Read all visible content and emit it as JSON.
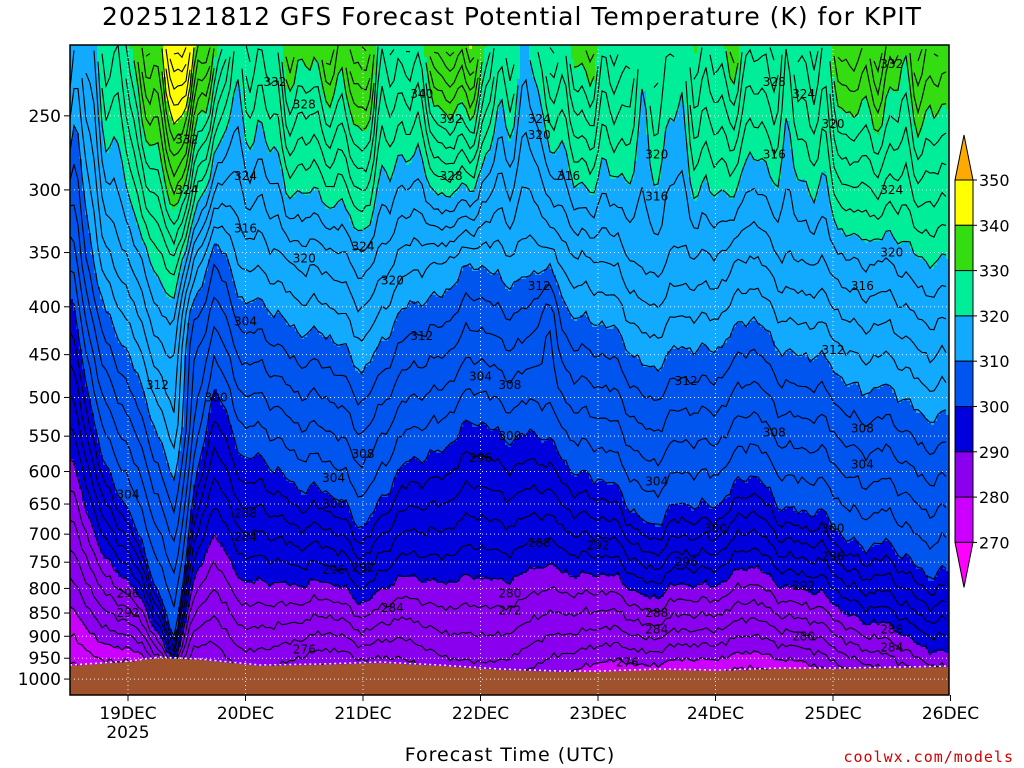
{
  "title": "2025121812 GFS Forecast Potential Temperature (K) for KPIT",
  "credit": "coolwx.com/models",
  "chart_data": {
    "type": "heatmap",
    "title": "2025121812 GFS Forecast Potential Temperature (K) for KPIT",
    "xlabel": "Forecast Time (UTC)",
    "ylabel": "",
    "x_ticks": [
      "19DEC",
      "20DEC",
      "21DEC",
      "22DEC",
      "23DEC",
      "24DEC",
      "25DEC",
      "26DEC"
    ],
    "x_year_label": "2025",
    "y_ticks": [
      250,
      300,
      350,
      400,
      450,
      500,
      550,
      600,
      650,
      700,
      750,
      800,
      850,
      900,
      950,
      1000
    ],
    "y_scale": "log pressure (hPa)",
    "grid": true,
    "colorbar": {
      "levels": [
        270,
        280,
        290,
        300,
        310,
        320,
        330,
        340,
        350
      ],
      "colors": [
        "#ff00ff",
        "#cc00ff",
        "#8a00ee",
        "#0000dd",
        "#0055ee",
        "#11aaff",
        "#00ee99",
        "#33dd11",
        "#ffff00",
        "#ffaa00"
      ]
    },
    "contour_labels": [
      {
        "t": "19DEC 12",
        "p": 300,
        "value": 324
      },
      {
        "t": "19DEC 12",
        "p": 265,
        "value": 332
      },
      {
        "t": "20DEC 06",
        "p": 230,
        "value": 332
      },
      {
        "t": "20DEC 12",
        "p": 243,
        "value": 328
      },
      {
        "t": "20DEC 00",
        "p": 290,
        "value": 324
      },
      {
        "t": "20DEC 00",
        "p": 330,
        "value": 316
      },
      {
        "t": "20DEC 12",
        "p": 355,
        "value": 320
      },
      {
        "t": "21DEC 00",
        "p": 345,
        "value": 324
      },
      {
        "t": "21DEC 06",
        "p": 375,
        "value": 320
      },
      {
        "t": "21DEC 12",
        "p": 237,
        "value": 340
      },
      {
        "t": "21DEC 18",
        "p": 252,
        "value": 332
      },
      {
        "t": "21DEC 18",
        "p": 290,
        "value": 328
      },
      {
        "t": "22DEC 12",
        "p": 252,
        "value": 324
      },
      {
        "t": "22DEC 12",
        "p": 262,
        "value": 320
      },
      {
        "t": "22DEC 18",
        "p": 290,
        "value": 316
      },
      {
        "t": "23DEC 12",
        "p": 275,
        "value": 320
      },
      {
        "t": "23DEC 12",
        "p": 305,
        "value": 316
      },
      {
        "t": "24DEC 12",
        "p": 230,
        "value": 328
      },
      {
        "t": "24DEC 18",
        "p": 237,
        "value": 324
      },
      {
        "t": "25DEC 00",
        "p": 255,
        "value": 320
      },
      {
        "t": "24DEC 12",
        "p": 275,
        "value": 316
      },
      {
        "t": "25DEC 12",
        "p": 220,
        "value": 332
      },
      {
        "t": "25DEC 12",
        "p": 300,
        "value": 324
      },
      {
        "t": "25DEC 12",
        "p": 350,
        "value": 320
      },
      {
        "t": "25DEC 06",
        "p": 380,
        "value": 316
      },
      {
        "t": "22DEC 12",
        "p": 380,
        "value": 312
      },
      {
        "t": "21DEC 12",
        "p": 430,
        "value": 312
      },
      {
        "t": "19DEC 06",
        "p": 485,
        "value": 312
      },
      {
        "t": "20DEC 00",
        "p": 415,
        "value": 304
      },
      {
        "t": "19DEC 18",
        "p": 500,
        "value": 300
      },
      {
        "t": "22DEC 00",
        "p": 475,
        "value": 304
      },
      {
        "t": "22DEC 06",
        "p": 485,
        "value": 308
      },
      {
        "t": "23DEC 18",
        "p": 480,
        "value": 312
      },
      {
        "t": "25DEC 00",
        "p": 445,
        "value": 312
      },
      {
        "t": "24DEC 12",
        "p": 545,
        "value": 308
      },
      {
        "t": "25DEC 06",
        "p": 540,
        "value": 308
      },
      {
        "t": "21DEC 00",
        "p": 575,
        "value": 308
      },
      {
        "t": "22DEC 06",
        "p": 550,
        "value": 300
      },
      {
        "t": "22DEC 00",
        "p": 580,
        "value": 296
      },
      {
        "t": "20DEC 18",
        "p": 610,
        "value": 304
      },
      {
        "t": "20DEC 18",
        "p": 650,
        "value": 300
      },
      {
        "t": "19DEC 00",
        "p": 635,
        "value": 304
      },
      {
        "t": "23DEC 12",
        "p": 615,
        "value": 304
      },
      {
        "t": "25DEC 06",
        "p": 590,
        "value": 304
      },
      {
        "t": "24DEC 00",
        "p": 690,
        "value": 300
      },
      {
        "t": "25DEC 00",
        "p": 690,
        "value": 300
      },
      {
        "t": "20DEC 00",
        "p": 665,
        "value": 288
      },
      {
        "t": "20DEC 00",
        "p": 705,
        "value": 284
      },
      {
        "t": "20DEC 18",
        "p": 765,
        "value": 296
      },
      {
        "t": "21DEC 00",
        "p": 760,
        "value": 292
      },
      {
        "t": "22DEC 12",
        "p": 715,
        "value": 288
      },
      {
        "t": "23DEC 00",
        "p": 720,
        "value": 292
      },
      {
        "t": "23DEC 18",
        "p": 750,
        "value": 296
      },
      {
        "t": "25DEC 00",
        "p": 740,
        "value": 296
      },
      {
        "t": "24DEC 18",
        "p": 795,
        "value": 292
      },
      {
        "t": "19DEC 00",
        "p": 810,
        "value": 296
      },
      {
        "t": "19DEC 00",
        "p": 850,
        "value": 292
      },
      {
        "t": "21DEC 06",
        "p": 840,
        "value": 284
      },
      {
        "t": "22DEC 06",
        "p": 810,
        "value": 280
      },
      {
        "t": "22DEC 06",
        "p": 845,
        "value": 272
      },
      {
        "t": "23DEC 12",
        "p": 850,
        "value": 288
      },
      {
        "t": "23DEC 12",
        "p": 885,
        "value": 284
      },
      {
        "t": "24DEC 18",
        "p": 900,
        "value": 280
      },
      {
        "t": "25DEC 12",
        "p": 885,
        "value": 288
      },
      {
        "t": "25DEC 12",
        "p": 925,
        "value": 284
      },
      {
        "t": "20DEC 12",
        "p": 930,
        "value": 276
      },
      {
        "t": "23DEC 06",
        "p": 960,
        "value": 276
      }
    ]
  }
}
